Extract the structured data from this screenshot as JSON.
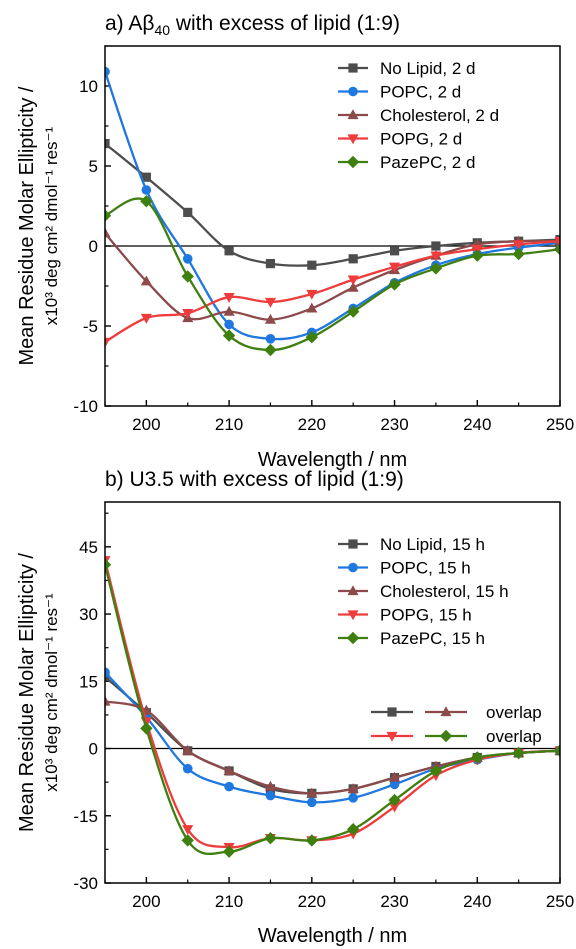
{
  "chart_data": [
    {
      "type": "line",
      "title": "a) Aβ40 with excess of lipid (1:9)",
      "title_parts": {
        "pre": "a) Aβ",
        "sub": "40",
        "post": " with excess of lipid (1:9)"
      },
      "xlabel": "Wavelength / nm",
      "ylabel_line1": "Mean Residue Molar Ellipticity /",
      "ylabel_line2": "x10³ deg cm² dmol⁻¹ res⁻¹",
      "xlim": [
        195,
        250
      ],
      "ylim": [
        -10,
        12.5
      ],
      "xticks": [
        200,
        210,
        220,
        230,
        240,
        250
      ],
      "yticks": [
        -10,
        -5,
        0,
        5,
        10
      ],
      "zero_line": true,
      "legend_position": "top-right",
      "series": [
        {
          "name": "No Lipid, 2 d",
          "color": "#4d4d4d",
          "marker": "square",
          "x": [
            195,
            200,
            205,
            210,
            215,
            220,
            225,
            230,
            235,
            240,
            245,
            250
          ],
          "y": [
            6.4,
            4.3,
            2.1,
            -0.3,
            -1.1,
            -1.2,
            -0.8,
            -0.3,
            0.0,
            0.2,
            0.3,
            0.4
          ]
        },
        {
          "name": "POPC, 2 d",
          "color": "#1f77e0",
          "marker": "circle",
          "x": [
            195,
            200,
            205,
            210,
            215,
            220,
            225,
            230,
            235,
            240,
            245,
            250
          ],
          "y": [
            10.9,
            3.5,
            -0.8,
            -4.9,
            -5.8,
            -5.4,
            -3.9,
            -2.3,
            -1.2,
            -0.5,
            -0.1,
            0.2
          ]
        },
        {
          "name": "Cholesterol, 2 d",
          "color": "#8c4a4a",
          "marker": "triangle-up",
          "x": [
            195,
            200,
            205,
            210,
            215,
            220,
            225,
            230,
            235,
            240,
            245,
            250
          ],
          "y": [
            0.8,
            -2.2,
            -4.5,
            -4.1,
            -4.6,
            -3.9,
            -2.6,
            -1.5,
            -0.6,
            0.1,
            0.3,
            0.3
          ]
        },
        {
          "name": "POPG, 2 d",
          "color": "#ef3b3b",
          "marker": "triangle-down",
          "x": [
            195,
            200,
            205,
            210,
            215,
            220,
            225,
            230,
            235,
            240,
            245,
            250
          ],
          "y": [
            -6.0,
            -4.5,
            -4.2,
            -3.2,
            -3.5,
            -3.0,
            -2.1,
            -1.3,
            -0.6,
            -0.2,
            0.1,
            0.3
          ]
        },
        {
          "name": "PazePC, 2 d",
          "color": "#3f7f0f",
          "marker": "diamond",
          "x": [
            195,
            200,
            205,
            210,
            215,
            220,
            225,
            230,
            235,
            240,
            245,
            250
          ],
          "y": [
            1.9,
            2.8,
            -1.9,
            -5.6,
            -6.5,
            -5.7,
            -4.1,
            -2.4,
            -1.4,
            -0.6,
            -0.5,
            -0.2
          ]
        }
      ]
    },
    {
      "type": "line",
      "title": "b) U3.5 with excess of lipid (1:9)",
      "title_parts": {
        "pre": "b) U3.5 with excess of lipid (1:9)",
        "sub": "",
        "post": ""
      },
      "xlabel": "Wavelength / nm",
      "ylabel_line1": "Mean Residue Molar Ellipticity /",
      "ylabel_line2": "x10³ deg cm² dmol⁻¹ res⁻¹",
      "xlim": [
        195,
        250
      ],
      "ylim": [
        -30,
        55
      ],
      "xticks": [
        200,
        210,
        220,
        230,
        240,
        250
      ],
      "yticks": [
        -30,
        -15,
        0,
        15,
        30,
        45
      ],
      "zero_line": true,
      "legend_position": "top-right",
      "overlap_labels": [
        "overlap",
        "overlap"
      ],
      "series": [
        {
          "name": "No Lipid, 15 h",
          "color": "#4d4d4d",
          "marker": "square",
          "x": [
            195,
            200,
            205,
            210,
            215,
            220,
            225,
            230,
            235,
            240,
            245,
            250
          ],
          "y": [
            16,
            8,
            -0.5,
            -5,
            -9,
            -10,
            -9,
            -6.5,
            -4,
            -2,
            -1,
            -0.5
          ]
        },
        {
          "name": "POPC, 15 h",
          "color": "#1f77e0",
          "marker": "circle",
          "x": [
            195,
            200,
            205,
            210,
            215,
            220,
            225,
            230,
            235,
            240,
            245,
            250
          ],
          "y": [
            17,
            7,
            -4.5,
            -8.5,
            -10.5,
            -12,
            -11,
            -8,
            -4.5,
            -2.5,
            -1,
            -0.5
          ]
        },
        {
          "name": "Cholesterol, 15 h",
          "color": "#8c4a4a",
          "marker": "triangle-up",
          "x": [
            195,
            200,
            205,
            210,
            215,
            220,
            225,
            230,
            235,
            240,
            245,
            250
          ],
          "y": [
            10.5,
            8.5,
            -0.5,
            -5,
            -8.5,
            -10,
            -9,
            -6.5,
            -4,
            -2,
            -1,
            -0.5
          ]
        },
        {
          "name": "POPG, 15 h",
          "color": "#ef3b3b",
          "marker": "triangle-down",
          "x": [
            195,
            200,
            205,
            210,
            215,
            220,
            225,
            230,
            235,
            240,
            245,
            250
          ],
          "y": [
            42,
            6,
            -18,
            -22,
            -20,
            -20.5,
            -19,
            -13,
            -6,
            -2.5,
            -1,
            -0.5
          ]
        },
        {
          "name": "PazePC, 15 h",
          "color": "#3f7f0f",
          "marker": "diamond",
          "x": [
            195,
            200,
            205,
            210,
            215,
            220,
            225,
            230,
            235,
            240,
            245,
            250
          ],
          "y": [
            41,
            4.5,
            -20.5,
            -23,
            -20,
            -20.5,
            -18,
            -11.5,
            -5,
            -2,
            -1,
            -0.5
          ]
        }
      ]
    }
  ]
}
